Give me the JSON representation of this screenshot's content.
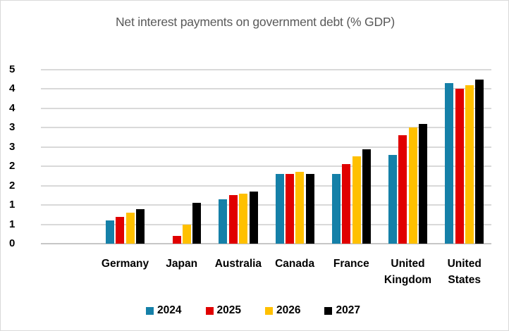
{
  "chart_data": {
    "type": "bar",
    "title": "Net interest payments on government debt (% GDP)",
    "xlabel": "",
    "ylabel": "",
    "categories": [
      "Germany",
      "Japan",
      "Australia",
      "Canada",
      "France",
      "United Kingdom",
      "United States"
    ],
    "series": [
      {
        "name": "2024",
        "color": "#1580A8",
        "values": [
          0.6,
          0.0,
          1.15,
          1.8,
          1.8,
          2.3,
          4.15
        ]
      },
      {
        "name": "2025",
        "color": "#E00000",
        "values": [
          0.7,
          0.2,
          1.25,
          1.8,
          2.05,
          2.8,
          4.0
        ]
      },
      {
        "name": "2026",
        "color": "#FFC000",
        "values": [
          0.8,
          0.5,
          1.3,
          1.85,
          2.25,
          3.0,
          4.1
        ]
      },
      {
        "name": "2027",
        "color": "#000000",
        "values": [
          0.9,
          1.05,
          1.35,
          1.8,
          2.45,
          3.1,
          4.25
        ]
      }
    ],
    "ylim": [
      0,
      4.5
    ],
    "ytick_step": 0.5,
    "ytick_labels_top_to_bottom": [
      "5",
      "4",
      "4",
      "3",
      "3",
      "2",
      "2",
      "1",
      "1",
      "0"
    ],
    "grid": true,
    "legend_position": "bottom",
    "colors": {
      "title_text": "#595959",
      "axis_text": "#000000",
      "gridline": "#D9D9D9",
      "background": "#FFFFFF",
      "border": "#D9D9D9"
    }
  }
}
